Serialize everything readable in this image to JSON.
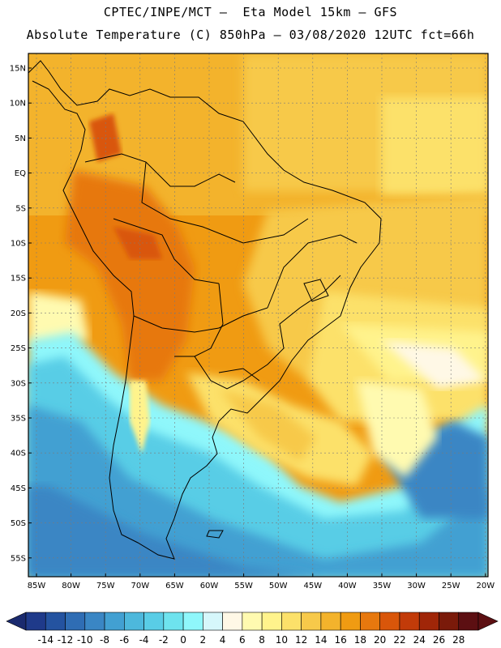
{
  "header": {
    "line1": "CPTEC/INPE/MCT –  Eta Model 15km – GFS",
    "line2": "Absolute Temperature (C) 850hPa – 03/08/2020 12UTC fct=66h"
  },
  "lat_labels": [
    "15N",
    "10N",
    "5N",
    "EQ",
    "5S",
    "10S",
    "15S",
    "20S",
    "25S",
    "30S",
    "35S",
    "40S",
    "45S",
    "50S",
    "55S"
  ],
  "lon_labels": [
    "85W",
    "80W",
    "75W",
    "70W",
    "65W",
    "60W",
    "55W",
    "50W",
    "45W",
    "40W",
    "35W",
    "30W",
    "25W",
    "20W"
  ],
  "colorbar": {
    "labels": [
      "-14",
      "-12",
      "-10",
      "-8",
      "-6",
      "-4",
      "-2",
      "0",
      "2",
      "4",
      "6",
      "8",
      "10",
      "12",
      "14",
      "16",
      "18",
      "20",
      "22",
      "24",
      "26",
      "28"
    ],
    "colors": [
      "#1f3a8a",
      "#2453a0",
      "#2f6db4",
      "#3a86c4",
      "#42a0d2",
      "#4db8dc",
      "#59cde6",
      "#6ee3ee",
      "#8ff7fb",
      "#d6f7fb",
      "#fff8e6",
      "#fffab0",
      "#fff38c",
      "#fce16a",
      "#f7c94a",
      "#f3b32c",
      "#f09b12",
      "#e7780e",
      "#d9560a",
      "#c23b09",
      "#a02608",
      "#7a1a0a",
      "#5c0f12"
    ],
    "left_arrow_color": "#1a2a6e",
    "right_arrow_color": "#5c0f12"
  }
}
